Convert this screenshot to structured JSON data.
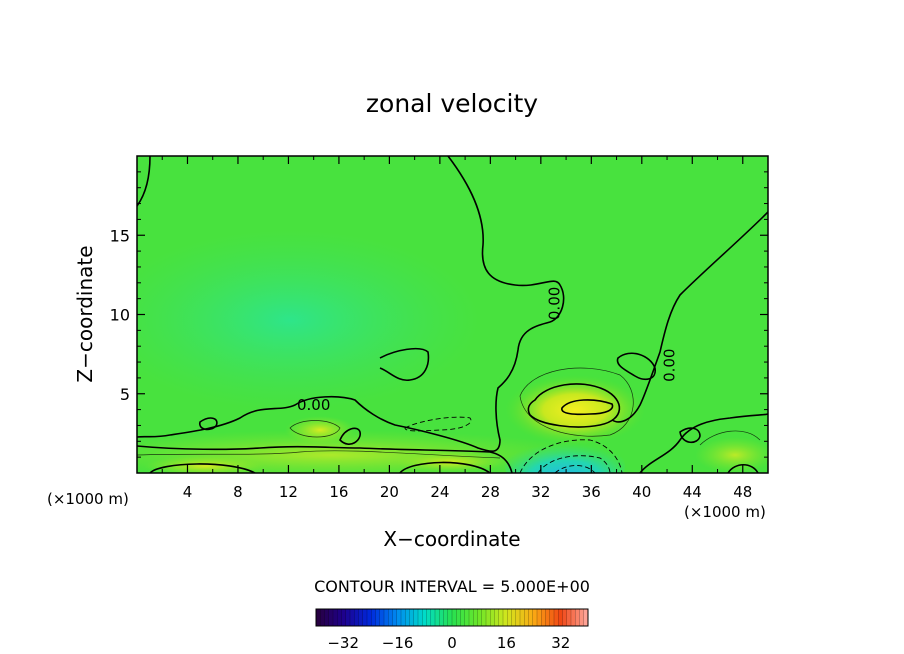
{
  "chart_data": {
    "type": "heatmap",
    "title": "zonal velocity",
    "xlabel": "X−coordinate",
    "ylabel": "Z−coordinate",
    "x_unit_left": "(×1000 m)",
    "x_unit_right": "(×1000 m)",
    "x_range": [
      0,
      50
    ],
    "y_range": [
      0,
      20
    ],
    "x_ticks": [
      4,
      8,
      12,
      16,
      20,
      24,
      28,
      32,
      36,
      40,
      44,
      48
    ],
    "y_ticks": [
      5,
      10,
      15
    ],
    "contour_labels": [
      {
        "text": "0.00",
        "x": 14.0,
        "y": 4.3,
        "rotate": 0
      },
      {
        "text": "0.00",
        "x": 33.1,
        "y": 10.7,
        "rotate": -90
      },
      {
        "text": "0.00",
        "x": 42.2,
        "y": 6.8,
        "rotate": -90
      }
    ],
    "contour_interval_text": "CONTOUR INTERVAL = 5.000E+00",
    "colorbar": {
      "min": -40,
      "max": 40,
      "ticks": [
        -32,
        -16,
        0,
        16,
        32
      ],
      "tick_labels": [
        "−32",
        "−16",
        "0",
        "16",
        "32"
      ]
    },
    "field_description": {
      "background_value": 0,
      "features": [
        {
          "x": 35,
          "y": 4.2,
          "value": 15,
          "kind": "max"
        },
        {
          "x": 34,
          "y": 0.7,
          "value": -18,
          "kind": "min"
        },
        {
          "x": 6,
          "y": 0.5,
          "value": 10,
          "kind": "max"
        },
        {
          "x": 26,
          "y": 3.2,
          "value": -5,
          "kind": "min"
        }
      ]
    }
  }
}
